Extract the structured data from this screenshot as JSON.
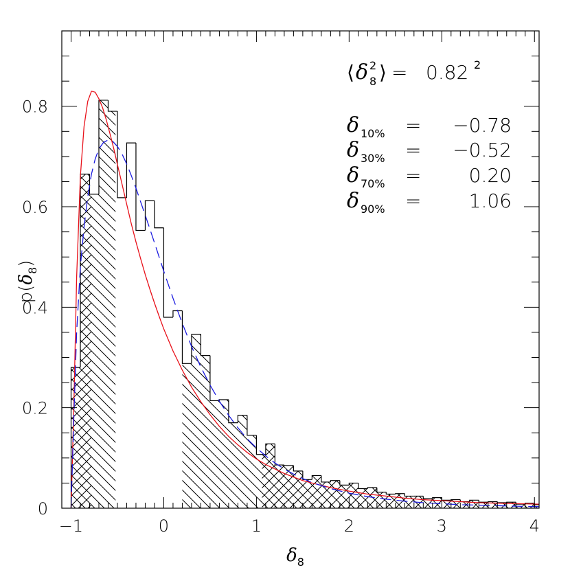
{
  "chart_data": {
    "type": "bar",
    "xlabel_symbol": "δ",
    "xlabel_sub": "8",
    "ylabel_prefix": "p(",
    "ylabel_symbol": "δ",
    "ylabel_sub": "8",
    "ylabel_suffix": ")",
    "xlim": [
      -1.1,
      4.05
    ],
    "ylim": [
      0,
      0.95
    ],
    "xticks": [
      -1,
      0,
      1,
      2,
      3,
      4
    ],
    "xtick_labels": [
      "−1",
      "0",
      "1",
      "2",
      "3",
      "4"
    ],
    "yticks": [
      0,
      0.2,
      0.4,
      0.6,
      0.8
    ],
    "ytick_labels": [
      "0",
      "0.2",
      "0.4",
      "0.6",
      "0.8"
    ],
    "histogram": {
      "bin_width": 0.1,
      "bin_start": -1.0,
      "values": [
        0.28,
        0.665,
        0.625,
        0.812,
        0.79,
        0.618,
        0.727,
        0.553,
        0.612,
        0.558,
        0.38,
        0.393,
        0.288,
        0.346,
        0.304,
        0.214,
        0.216,
        0.17,
        0.185,
        0.145,
        0.107,
        0.128,
        0.086,
        0.085,
        0.074,
        0.057,
        0.065,
        0.052,
        0.055,
        0.046,
        0.05,
        0.039,
        0.041,
        0.032,
        0.028,
        0.029,
        0.024,
        0.024,
        0.019,
        0.021,
        0.016,
        0.017,
        0.013,
        0.016,
        0.012,
        0.013,
        0.011,
        0.012,
        0.008,
        0.01,
        0.007,
        0.008
      ],
      "hatch_regions": [
        {
          "from": -1.0,
          "to": -0.52,
          "style": "backslash"
        },
        {
          "from": 0.2,
          "to": 4.05,
          "style": "backslash"
        },
        {
          "from": -1.0,
          "to": -0.78,
          "style": "slash"
        },
        {
          "from": 1.06,
          "to": 4.05,
          "style": "slash"
        }
      ]
    },
    "series": [
      {
        "style": "solid",
        "color": "#e8111a",
        "x": [
          -1.0,
          -0.97,
          -0.94,
          -0.9,
          -0.86,
          -0.82,
          -0.78,
          -0.74,
          -0.7,
          -0.66,
          -0.62,
          -0.58,
          -0.54,
          -0.5,
          -0.45,
          -0.4,
          -0.35,
          -0.3,
          -0.25,
          -0.2,
          -0.15,
          -0.1,
          -0.05,
          0.0,
          0.1,
          0.2,
          0.3,
          0.4,
          0.5,
          0.6,
          0.7,
          0.8,
          0.9,
          1.0,
          1.1,
          1.2,
          1.3,
          1.4,
          1.5,
          1.6,
          1.8,
          2.0,
          2.2,
          2.4,
          2.6,
          2.8,
          3.0,
          3.2,
          3.4,
          3.6,
          3.8,
          4.05
        ],
        "y": [
          0.0,
          0.2,
          0.46,
          0.66,
          0.76,
          0.81,
          0.83,
          0.828,
          0.815,
          0.797,
          0.773,
          0.745,
          0.716,
          0.684,
          0.645,
          0.605,
          0.566,
          0.53,
          0.497,
          0.465,
          0.436,
          0.408,
          0.382,
          0.357,
          0.313,
          0.275,
          0.241,
          0.212,
          0.186,
          0.163,
          0.143,
          0.126,
          0.111,
          0.098,
          0.087,
          0.078,
          0.069,
          0.062,
          0.055,
          0.05,
          0.041,
          0.034,
          0.028,
          0.024,
          0.02,
          0.017,
          0.015,
          0.013,
          0.011,
          0.01,
          0.009,
          0.008
        ]
      },
      {
        "style": "dashed",
        "color": "#1a1adf",
        "x": [
          -1.0,
          -0.97,
          -0.94,
          -0.9,
          -0.86,
          -0.82,
          -0.78,
          -0.74,
          -0.7,
          -0.65,
          -0.6,
          -0.55,
          -0.5,
          -0.45,
          -0.4,
          -0.35,
          -0.3,
          -0.25,
          -0.2,
          -0.15,
          -0.1,
          -0.05,
          0.0,
          0.1,
          0.2,
          0.3,
          0.4,
          0.5,
          0.6,
          0.7,
          0.8,
          0.9,
          1.0,
          1.1,
          1.2,
          1.3,
          1.4,
          1.5,
          1.6,
          1.8,
          2.0,
          2.2,
          2.4,
          2.6,
          2.8,
          3.0,
          3.2,
          3.4,
          3.6,
          3.8,
          4.05
        ],
        "y": [
          0.0,
          0.18,
          0.35,
          0.48,
          0.56,
          0.62,
          0.665,
          0.695,
          0.715,
          0.728,
          0.733,
          0.73,
          0.72,
          0.705,
          0.685,
          0.662,
          0.637,
          0.61,
          0.583,
          0.556,
          0.528,
          0.5,
          0.472,
          0.418,
          0.368,
          0.322,
          0.281,
          0.245,
          0.213,
          0.185,
          0.16,
          0.138,
          0.12,
          0.104,
          0.09,
          0.078,
          0.068,
          0.059,
          0.051,
          0.039,
          0.03,
          0.023,
          0.018,
          0.014,
          0.011,
          0.009,
          0.007,
          0.006,
          0.005,
          0.004,
          0.003
        ]
      }
    ],
    "annotations": {
      "variance": {
        "symbol": "δ",
        "sup": "2",
        "sub": "8",
        "equals": "=",
        "value": "0.82",
        "value_sup": "2"
      },
      "percentiles": [
        {
          "symbol": "δ",
          "sub": "10%",
          "equals": "=",
          "value": "−0.78"
        },
        {
          "symbol": "δ",
          "sub": "30%",
          "equals": "=",
          "value": "−0.52"
        },
        {
          "symbol": "δ",
          "sub": "70%",
          "equals": "=",
          "value": "0.20"
        },
        {
          "symbol": "δ",
          "sub": "90%",
          "equals": "=",
          "value": "1.06"
        }
      ]
    }
  }
}
